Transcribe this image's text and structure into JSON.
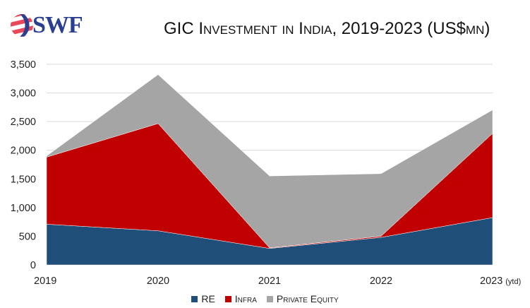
{
  "logo": {
    "text": "SWF"
  },
  "chart_data": {
    "type": "area",
    "stacked": true,
    "title": "GIC Investment in India, 2019-2023 (US$mn)",
    "categories": [
      "2019",
      "2020",
      "2021",
      "2022",
      "2023"
    ],
    "category_suffix": {
      "2023": "(ytd)"
    },
    "series": [
      {
        "name": "RE",
        "color": "#1f4e79",
        "values": [
          710,
          595,
          287,
          480,
          825
        ]
      },
      {
        "name": "Infra",
        "color": "#c00000",
        "values": [
          1170,
          1871,
          10,
          21,
          1469
        ]
      },
      {
        "name": "Private Equity",
        "color": "#a5a5a5",
        "values": [
          20,
          854,
          1254,
          1091,
          410
        ]
      }
    ],
    "ylim": [
      0,
      3500
    ],
    "yticks": [
      "0",
      "500",
      "1,000",
      "1,500",
      "2,000",
      "2,500",
      "3,000",
      "3,500"
    ],
    "grid": true,
    "legend_position": "bottom"
  }
}
